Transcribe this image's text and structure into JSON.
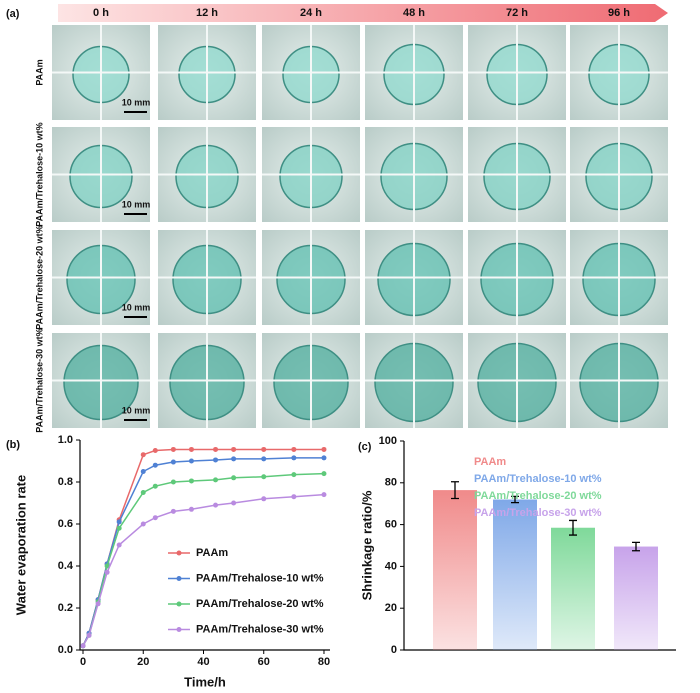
{
  "panel_a": {
    "label": "(a)",
    "times": [
      "0 h",
      "12 h",
      "24 h",
      "48 h",
      "72 h",
      "96 h"
    ],
    "rows": [
      "PAAm",
      "PAAm/Trehalose-10 wt%",
      "PAAm/Trehalose-20 wt%",
      "PAAm/Trehalose-30 wt%"
    ],
    "scale_bar": "10 mm"
  },
  "chart_data": [
    {
      "type": "line",
      "panel_label": "(b)",
      "xlabel": "Time/h",
      "ylabel": "Water evaporation rate",
      "x": [
        0,
        2,
        5,
        8,
        12,
        20,
        24,
        30,
        36,
        44,
        50,
        60,
        70,
        80
      ],
      "series": [
        {
          "name": "PAAm",
          "color": "#e8696a",
          "values": [
            0.02,
            0.08,
            0.24,
            0.41,
            0.62,
            0.93,
            0.95,
            0.955,
            0.955,
            0.955,
            0.955,
            0.955,
            0.955,
            0.955
          ]
        },
        {
          "name": "PAAm/Trehalose-10 wt%",
          "color": "#4f81d4",
          "values": [
            0.02,
            0.08,
            0.24,
            0.41,
            0.61,
            0.85,
            0.88,
            0.895,
            0.9,
            0.905,
            0.91,
            0.91,
            0.915,
            0.915
          ]
        },
        {
          "name": "PAAm/Trehalose-20 wt%",
          "color": "#5ec97a",
          "values": [
            0.02,
            0.07,
            0.23,
            0.4,
            0.58,
            0.75,
            0.78,
            0.8,
            0.805,
            0.81,
            0.82,
            0.825,
            0.835,
            0.84
          ]
        },
        {
          "name": "PAAm/Trehalose-30 wt%",
          "color": "#b98be0",
          "values": [
            0.02,
            0.07,
            0.22,
            0.37,
            0.5,
            0.6,
            0.63,
            0.66,
            0.67,
            0.69,
            0.7,
            0.72,
            0.73,
            0.74
          ]
        }
      ],
      "xlim": [
        -1,
        82
      ],
      "xticks": [
        0,
        20,
        40,
        60,
        80
      ],
      "ylim": [
        0,
        1
      ],
      "yticks": [
        {
          "value": 0,
          "label": "0.0"
        },
        0.2,
        0.4,
        0.6,
        0.8,
        {
          "value": 1,
          "label": "1.0"
        }
      ]
    },
    {
      "type": "bar",
      "panel_label": "(c)",
      "ylabel": "Shrinkage ratio/%",
      "categories": [
        "PAAm",
        "PAAm/Trehalose-10 wt%",
        "PAAm/Trehalose-20 wt%",
        "PAAm/Trehalose-30 wt%"
      ],
      "values": [
        76.5,
        72,
        58.5,
        49.5
      ],
      "errors": [
        4,
        1.5,
        3.5,
        2
      ],
      "colors": [
        "#f08a8a",
        "#7fa8e8",
        "#7fd99a",
        "#c7a3ea"
      ],
      "ylim": [
        0,
        100
      ],
      "yticks": [
        0,
        20,
        40,
        60,
        80,
        100
      ]
    }
  ]
}
